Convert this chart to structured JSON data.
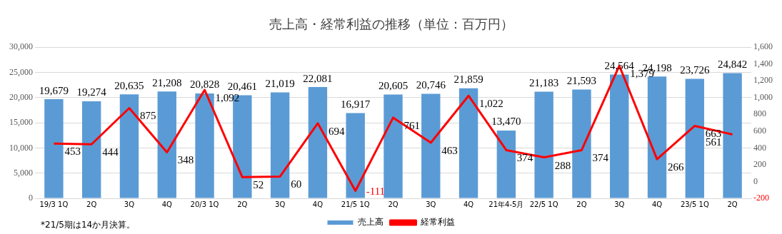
{
  "chart_data": {
    "type": "bar",
    "title": "売上高・経常利益の推移（単位：百万円）",
    "categories": [
      "19/3 1Q",
      "2Q",
      "3Q",
      "4Q",
      "20/3 1Q",
      "2Q",
      "3Q",
      "4Q",
      "21/5 1Q",
      "2Q",
      "3Q",
      "4Q",
      "21年4-5月",
      "22/5 1Q",
      "2Q",
      "3Q",
      "4Q",
      "23/5 1Q",
      "2Q"
    ],
    "series": [
      {
        "name": "売上高",
        "color": "#5b9bd5",
        "values": [
          19679,
          19274,
          20635,
          21208,
          20828,
          20461,
          21019,
          22081,
          16917,
          20605,
          20746,
          21859,
          13470,
          21183,
          21593,
          24564,
          24198,
          23726,
          24842
        ],
        "value_labels": [
          "19,679",
          "19,274",
          "20,635",
          "21,208",
          "20,828",
          "20,461",
          "21,019",
          "22,081",
          "16,917",
          "20,605",
          "20,746",
          "21,859",
          "13,470",
          "21,183",
          "21,593",
          "24,564",
          "24,198",
          "23,726",
          "24,842"
        ]
      },
      {
        "name": "経常利益",
        "type": "line",
        "axis": "y2",
        "color": "#ff0000",
        "values": [
          453,
          444,
          875,
          348,
          1092,
          52,
          60,
          694,
          -111,
          761,
          463,
          1022,
          374,
          288,
          374,
          1379,
          266,
          663,
          561
        ],
        "value_labels": [
          "453",
          "444",
          "875",
          "348",
          "1,092",
          "52",
          "60",
          "694",
          "-111",
          "761",
          "463",
          "1,022",
          "374",
          "288",
          "374",
          "1,379",
          "266",
          "663",
          "561"
        ]
      }
    ],
    "ylim": [
      0,
      30000
    ],
    "yticks": [
      {
        "value": 0,
        "label": "0"
      },
      {
        "value": 5000,
        "label": "5,000"
      },
      {
        "value": 10000,
        "label": "10,000"
      },
      {
        "value": 15000,
        "label": "15,000"
      },
      {
        "value": 20000,
        "label": "20,000"
      },
      {
        "value": 25000,
        "label": "25,000"
      },
      {
        "value": 30000,
        "label": "30,000"
      }
    ],
    "y2lim": [
      -200,
      1600
    ],
    "y2ticks": [
      -200,
      0,
      200,
      400,
      600,
      800,
      {
        "value": 1000,
        "label": "1,000"
      },
      {
        "value": 1200,
        "label": "1,200"
      },
      {
        "value": 1400,
        "label": "1,400"
      },
      {
        "value": 1600,
        "label": "1,600"
      }
    ],
    "grid": "y",
    "legend": "bottom",
    "marker": "none",
    "annotations": [
      "*21/5期は14か月決算。"
    ]
  }
}
